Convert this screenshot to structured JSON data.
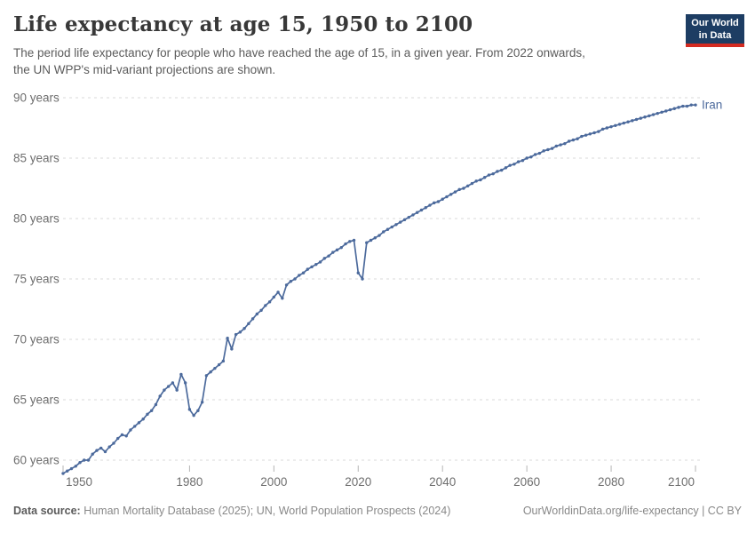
{
  "header": {
    "title": "Life expectancy at age 15, 1950 to 2100",
    "subtitle_line1": "The period life expectancy for people who have reached the age of 15, in a given year. From 2022 onwards,",
    "subtitle_line2": "the UN WPP's mid-variant projections are shown.",
    "logo": {
      "line1": "Our World",
      "line2": "in Data"
    }
  },
  "footer": {
    "source_label": "Data source:",
    "source_text": " Human Mortality Database (2025); UN, World Population Prospects (2024)",
    "credit": "OurWorldinData.org/life-expectancy | CC BY"
  },
  "chart_data": {
    "type": "line",
    "title": "Life expectancy at age 15, 1950 to 2100",
    "entity_label": "Iran",
    "x_range": [
      1950,
      2100
    ],
    "ylim": [
      58,
      90
    ],
    "y_ticks": [
      60,
      65,
      70,
      75,
      80,
      85,
      90
    ],
    "y_tick_suffix": " years",
    "x_ticks": [
      1950,
      1980,
      2000,
      2020,
      2040,
      2060,
      2080,
      2100
    ],
    "grid": "dashed-horizontal",
    "legend_position": "end-of-line",
    "projection_start": 2022,
    "line_color": "#4c6a9c",
    "grid_color": "#d9d9d9",
    "tick_mark_color": "#b5b5b5",
    "axis_label_color": "#6e6e6e",
    "series": [
      {
        "name": "Iran",
        "start_year": 1950,
        "values": [
          58.9,
          59.1,
          59.3,
          59.5,
          59.8,
          60.0,
          60.0,
          60.5,
          60.8,
          61.0,
          60.7,
          61.1,
          61.4,
          61.8,
          62.1,
          62.0,
          62.5,
          62.8,
          63.1,
          63.4,
          63.8,
          64.1,
          64.6,
          65.3,
          65.8,
          66.1,
          66.4,
          65.8,
          67.1,
          66.4,
          64.2,
          63.7,
          64.1,
          64.8,
          67.0,
          67.3,
          67.6,
          67.9,
          68.2,
          70.1,
          69.2,
          70.4,
          70.6,
          70.9,
          71.3,
          71.7,
          72.1,
          72.4,
          72.8,
          73.1,
          73.5,
          73.9,
          73.4,
          74.5,
          74.8,
          75.0,
          75.3,
          75.5,
          75.8,
          76.0,
          76.2,
          76.4,
          76.7,
          76.9,
          77.2,
          77.4,
          77.6,
          77.9,
          78.1,
          78.2,
          75.5,
          75.0,
          78.0,
          78.2,
          78.4,
          78.6,
          78.9,
          79.1,
          79.3,
          79.5,
          79.7,
          79.9,
          80.1,
          80.3,
          80.5,
          80.7,
          80.9,
          81.1,
          81.3,
          81.4,
          81.6,
          81.8,
          82.0,
          82.2,
          82.4,
          82.5,
          82.7,
          82.9,
          83.1,
          83.2,
          83.4,
          83.6,
          83.7,
          83.9,
          84.0,
          84.2,
          84.4,
          84.5,
          84.7,
          84.8,
          85.0,
          85.1,
          85.3,
          85.4,
          85.6,
          85.7,
          85.8,
          86.0,
          86.1,
          86.2,
          86.4,
          86.5,
          86.6,
          86.8,
          86.9,
          87.0,
          87.1,
          87.2,
          87.4,
          87.5,
          87.6,
          87.7,
          87.8,
          87.9,
          88.0,
          88.1,
          88.2,
          88.3,
          88.4,
          88.5,
          88.6,
          88.7,
          88.8,
          88.9,
          89.0,
          89.1,
          89.2,
          89.3,
          89.3,
          89.4,
          89.4
        ]
      }
    ]
  }
}
